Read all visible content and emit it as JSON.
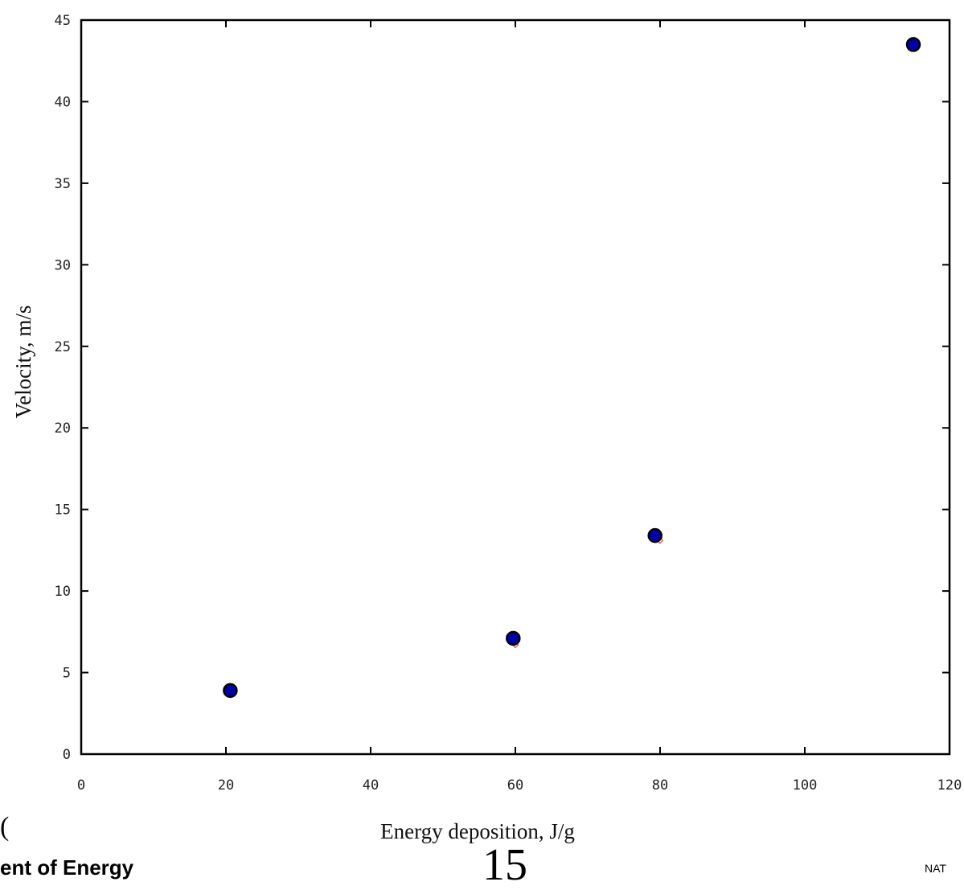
{
  "chart_data": {
    "type": "scatter",
    "xlabel": "Energy deposition, J/g",
    "ylabel": "Velocity, m/s",
    "xlim": [
      0,
      120
    ],
    "ylim": [
      0,
      45
    ],
    "x_ticks": [
      0,
      20,
      40,
      60,
      80,
      100,
      120
    ],
    "y_ticks": [
      0,
      5,
      10,
      15,
      20,
      25,
      30,
      35,
      40,
      45
    ],
    "grid": false,
    "series": [
      {
        "marker": "circle",
        "color": "#0000a8",
        "edge_color": "#000000",
        "points": [
          {
            "x": 20.6,
            "y": 3.9
          },
          {
            "x": 59.7,
            "y": 7.1
          },
          {
            "x": 79.3,
            "y": 13.4
          },
          {
            "x": 115.0,
            "y": 43.5
          }
        ]
      },
      {
        "marker": "diamond",
        "color": "#e05050",
        "points": [
          {
            "x": 20.3,
            "y": 3.7
          },
          {
            "x": 60.0,
            "y": 6.7
          },
          {
            "x": 80.0,
            "y": 13.1
          }
        ]
      }
    ]
  },
  "footer": {
    "left_text": "ent of Energy",
    "page_number": "15",
    "right_text": "NAT",
    "left_fragment": "("
  }
}
